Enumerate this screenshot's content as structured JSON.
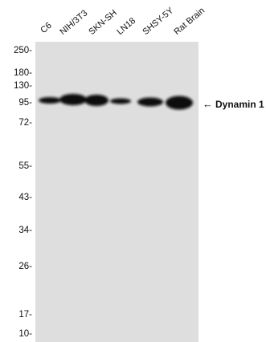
{
  "lanes": [
    "C6",
    "NIH/3T3",
    "SKN-SH",
    "LN18",
    "SHSY-5Y",
    "Rat Brain"
  ],
  "markers": [
    "250-",
    "180-",
    "130-",
    "95-",
    "72-",
    "55-",
    "43-",
    "34-",
    "26-",
    "17-",
    "10-"
  ],
  "target": {
    "arrow": "←",
    "name": "Dynamin 1"
  },
  "colors": {
    "membrane": "#dedede",
    "band": "#111111"
  }
}
